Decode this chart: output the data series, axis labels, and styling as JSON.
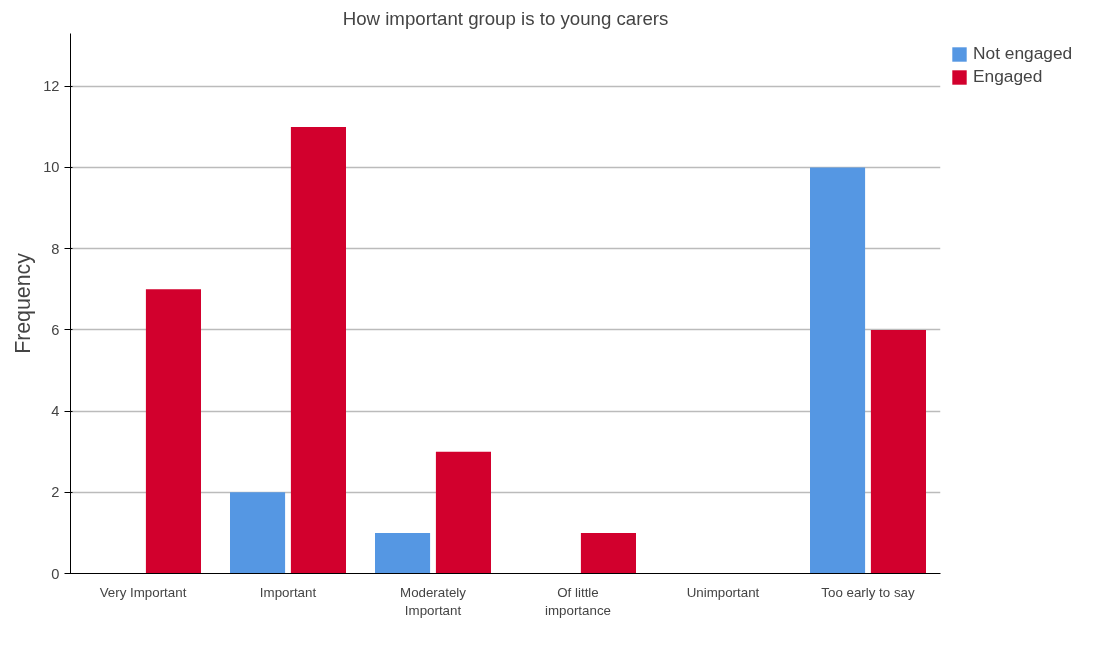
{
  "chart_data": {
    "type": "bar",
    "title": "How important group is to young carers",
    "ylabel": "Frequency",
    "categories": [
      "Very Important",
      "Important",
      "Moderately Important",
      "Of little importance",
      "Unimportant",
      "Too early to say"
    ],
    "series": [
      {
        "name": "Not engaged",
        "color": "#5597e3",
        "values": [
          0,
          2,
          1,
          0,
          0,
          10
        ]
      },
      {
        "name": "Engaged",
        "color": "#d2002d",
        "values": [
          7,
          11,
          3,
          1,
          0,
          6
        ]
      }
    ],
    "ylim": [
      0,
      13.3
    ],
    "yticks": [
      0,
      2,
      4,
      6,
      8,
      10,
      12
    ],
    "grid": "y",
    "legend": "top right"
  }
}
